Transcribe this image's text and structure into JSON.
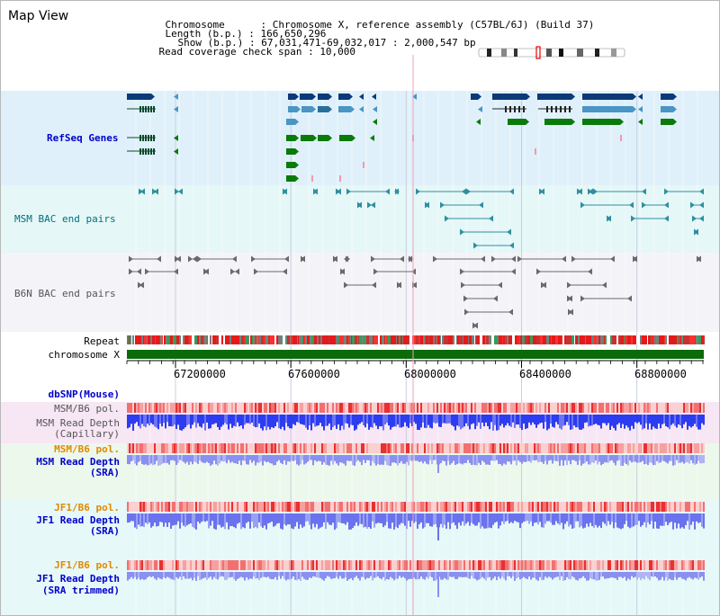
{
  "title": "Map View",
  "header": {
    "chromosome_key": "Chromosome      :",
    "chromosome_val": "Chromosome X, reference assembly (C57BL/6J) (Build 37)",
    "length_key": "Length (b.p.) :",
    "length_val": "166,650,296",
    "show_key": "Show (b.p.) :",
    "show_val": "67,031,471-69,032,017 : 2,000,547 bp",
    "coverage_key": "Read coverage check span :",
    "coverage_val": "10,000"
  },
  "tracks": {
    "refseq": "RefSeq Genes",
    "msm_bac": "MSM BAC end pairs",
    "b6n_bac": "B6N BAC end pairs",
    "repeat": "Repeat",
    "chromosome": "chromosome X",
    "dbsnp": "dbSNP(Mouse)",
    "msm_b6_pol_1": "MSM/B6 pol.",
    "msm_read_depth_cap_1": "MSM Read Depth",
    "msm_read_depth_cap_2": "(Capillary)",
    "msm_b6_pol_2": "MSM/B6 pol.",
    "msm_read_depth_sra_1": "MSM Read Depth",
    "msm_read_depth_sra_2": "(SRA)",
    "jf1_b6_pol_1": "JF1/B6 pol.",
    "jf1_read_depth_1": "JF1 Read Depth",
    "jf1_read_depth_2": "(SRA)",
    "jf1_b6_pol_2": "JF1/B6 pol.",
    "jf1_read_depth_trim_1": "JF1 Read Depth",
    "jf1_read_depth_trim_2": "(SRA trimmed)"
  },
  "axis": {
    "ticks": [
      "67200000",
      "67600000",
      "68000000",
      "68400000",
      "68800000"
    ],
    "tick_values": [
      67200000,
      67600000,
      68000000,
      68400000,
      68800000
    ],
    "range": [
      67031471,
      69032017
    ]
  },
  "colors": {
    "refseq_bg": "#dff0fa",
    "bac_bg": "#e5f7f7",
    "b6n_bg": "#f4f4f8",
    "gene_dark": "#0b3a78",
    "gene_mid": "#4a95c4",
    "gene_green": "#0a7a0a",
    "chrom_bar": "#0a6b0a",
    "depth_blue": "#2c3cf0",
    "depth_light": "#8a90f0",
    "pol_red": "#f06060"
  }
}
